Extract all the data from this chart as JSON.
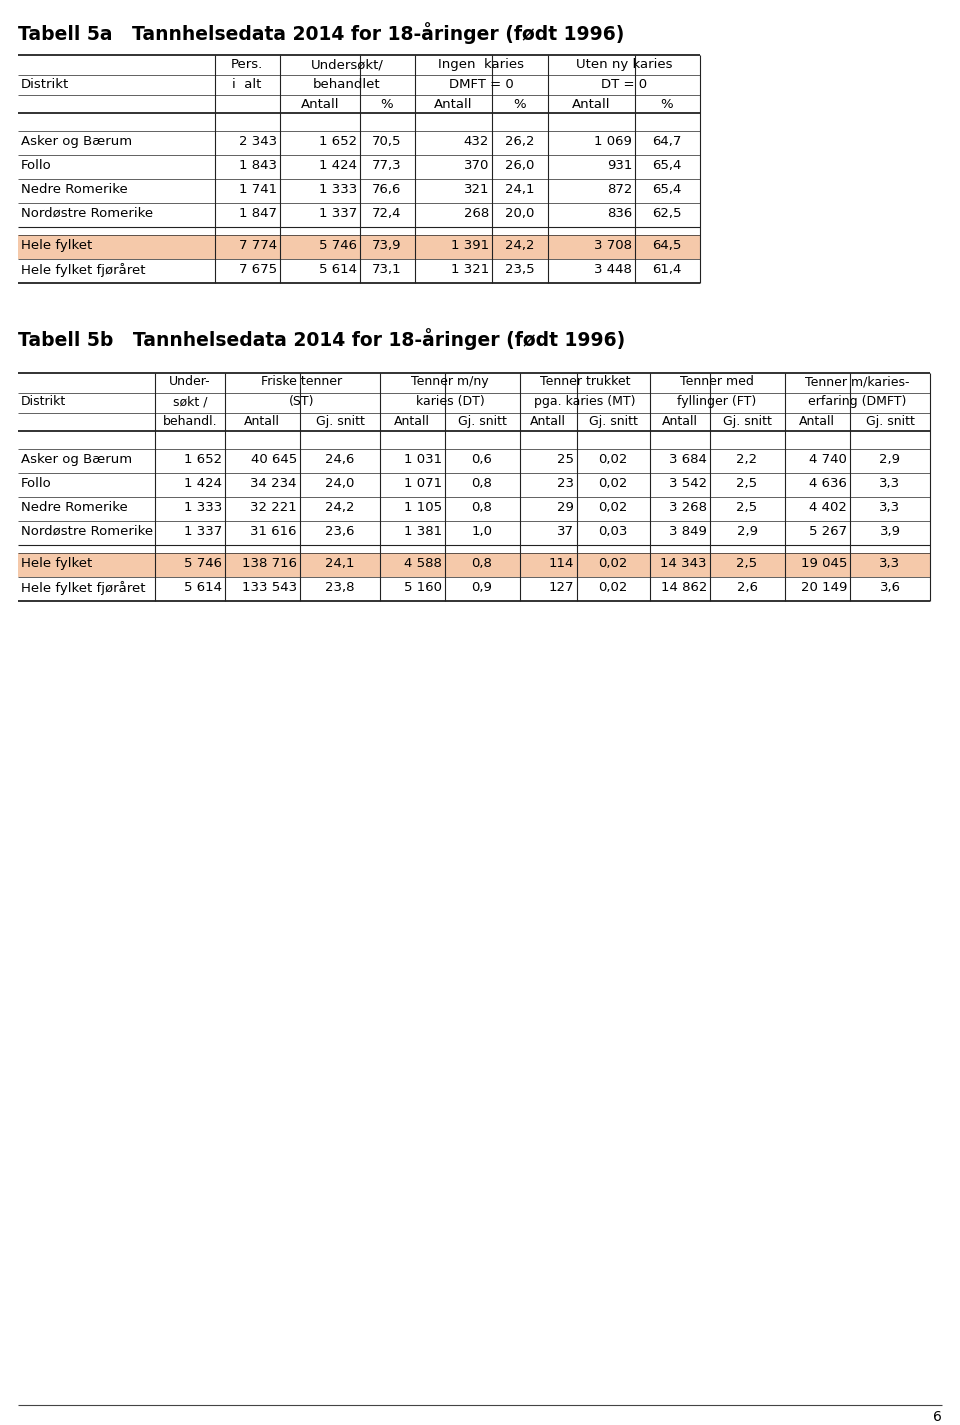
{
  "title5a": "Tabell 5a   Tannhelsedata 2014 for 18-åringer (født 1996)",
  "title5b": "Tabell 5b   Tannhelsedata 2014 for 18-åringer (født 1996)",
  "page_number": "6",
  "highlight_color": "#F5C9AA",
  "table5a": {
    "rows": [
      {
        "name": "Asker og Bærum",
        "vals": [
          "2 343",
          "1 652",
          "70,5",
          "432",
          "26,2",
          "1 069",
          "64,7"
        ],
        "highlight": false
      },
      {
        "name": "Follo",
        "vals": [
          "1 843",
          "1 424",
          "77,3",
          "370",
          "26,0",
          "931",
          "65,4"
        ],
        "highlight": false
      },
      {
        "name": "Nedre Romerike",
        "vals": [
          "1 741",
          "1 333",
          "76,6",
          "321",
          "24,1",
          "872",
          "65,4"
        ],
        "highlight": false
      },
      {
        "name": "Nordøstre Romerike",
        "vals": [
          "1 847",
          "1 337",
          "72,4",
          "268",
          "20,0",
          "836",
          "62,5"
        ],
        "highlight": false
      },
      {
        "name": "Hele fylket",
        "vals": [
          "7 774",
          "5 746",
          "73,9",
          "1 391",
          "24,2",
          "3 708",
          "64,5"
        ],
        "highlight": true
      },
      {
        "name": "Hele fylket fjøråret",
        "vals": [
          "7 675",
          "5 614",
          "73,1",
          "1 321",
          "23,5",
          "3 448",
          "61,4"
        ],
        "highlight": false
      }
    ]
  },
  "table5b": {
    "rows": [
      {
        "name": "Asker og Bærum",
        "vals": [
          "1 652",
          "40 645",
          "24,6",
          "1 031",
          "0,6",
          "25",
          "0,02",
          "3 684",
          "2,2",
          "4 740",
          "2,9"
        ],
        "highlight": false
      },
      {
        "name": "Follo",
        "vals": [
          "1 424",
          "34 234",
          "24,0",
          "1 071",
          "0,8",
          "23",
          "0,02",
          "3 542",
          "2,5",
          "4 636",
          "3,3"
        ],
        "highlight": false
      },
      {
        "name": "Nedre Romerike",
        "vals": [
          "1 333",
          "32 221",
          "24,2",
          "1 105",
          "0,8",
          "29",
          "0,02",
          "3 268",
          "2,5",
          "4 402",
          "3,3"
        ],
        "highlight": false
      },
      {
        "name": "Nordøstre Romerike",
        "vals": [
          "1 337",
          "31 616",
          "23,6",
          "1 381",
          "1,0",
          "37",
          "0,03",
          "3 849",
          "2,9",
          "5 267",
          "3,9"
        ],
        "highlight": false
      },
      {
        "name": "Hele fylket",
        "vals": [
          "5 746",
          "138 716",
          "24,1",
          "4 588",
          "0,8",
          "114",
          "0,02",
          "14 343",
          "2,5",
          "19 045",
          "3,3"
        ],
        "highlight": true
      },
      {
        "name": "Hele fylket fjøråret",
        "vals": [
          "5 614",
          "133 543",
          "23,8",
          "5 160",
          "0,9",
          "127",
          "0,02",
          "14 862",
          "2,6",
          "20 149",
          "3,6"
        ],
        "highlight": false
      }
    ]
  }
}
